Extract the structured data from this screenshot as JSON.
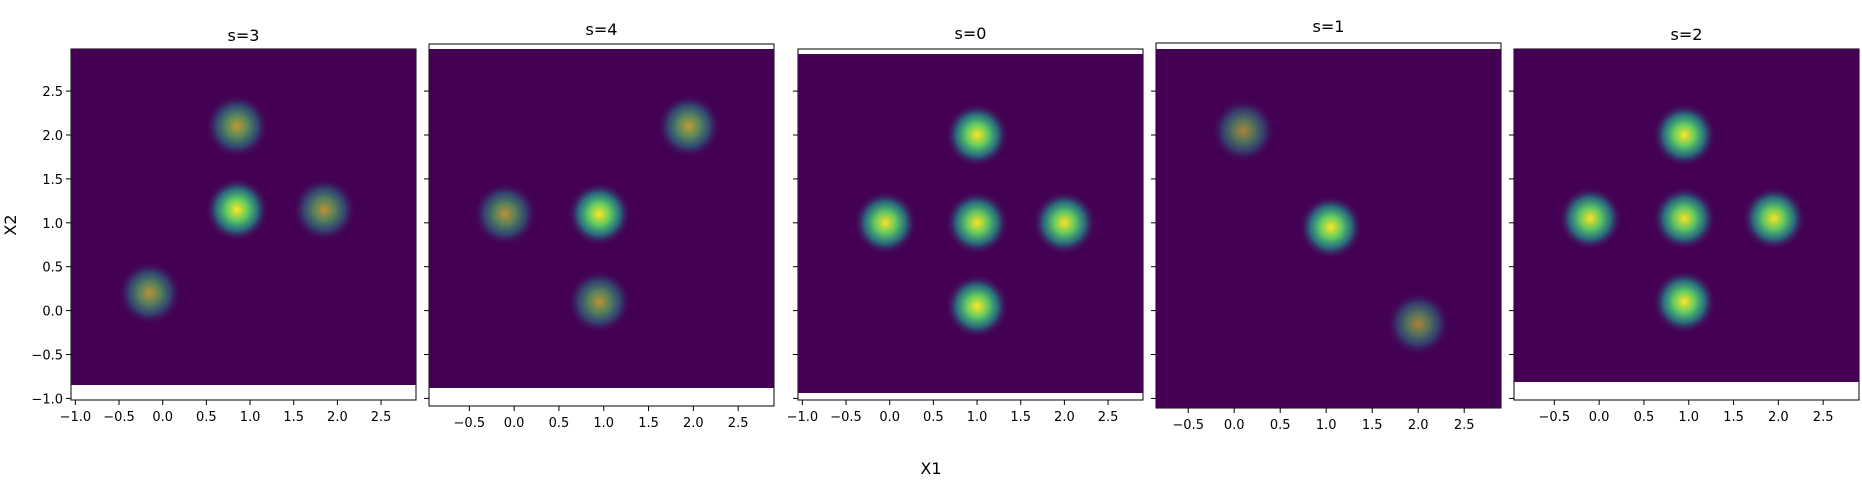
{
  "figure": {
    "xlabel": "X1",
    "ylabel": "X2",
    "yticks": [
      -1.0,
      -0.5,
      0.0,
      0.5,
      1.0,
      1.5,
      2.0,
      2.5
    ],
    "ytick_labels": [
      "−1.0",
      "−0.5",
      "0.0",
      "0.5",
      "1.0",
      "1.5",
      "2.0",
      "2.5"
    ],
    "colormap": "viridis",
    "colors": {
      "low": "#440154",
      "mid": "#21918c",
      "high": "#fde725"
    }
  },
  "chart_data": [
    {
      "type": "heatmap",
      "title": "s=3",
      "xlim": [
        -1.05,
        2.9
      ],
      "ylim": [
        -0.85,
        2.95
      ],
      "xticks": [
        -1.0,
        -0.5,
        0.0,
        0.5,
        1.0,
        1.5,
        2.0,
        2.5
      ],
      "xtick_labels": [
        "−1.0",
        "−0.5",
        "0.0",
        "0.5",
        "1.0",
        "1.5",
        "2.0",
        "2.5"
      ],
      "show_y_labels": true,
      "blobs": [
        {
          "x": 0.85,
          "y": 2.1,
          "intensity": 0.45
        },
        {
          "x": 0.85,
          "y": 1.15,
          "intensity": 1.0
        },
        {
          "x": 1.85,
          "y": 1.15,
          "intensity": 0.4
        },
        {
          "x": -0.15,
          "y": 0.2,
          "intensity": 0.4
        }
      ]
    },
    {
      "type": "heatmap",
      "title": "s=4",
      "xlim": [
        -0.95,
        2.9
      ],
      "ylim": [
        -0.88,
        2.95
      ],
      "xticks": [
        -0.5,
        0.0,
        0.5,
        1.0,
        1.5,
        2.0,
        2.5
      ],
      "xtick_labels": [
        "−0.5",
        "0.0",
        "0.5",
        "1.0",
        "1.5",
        "2.0",
        "2.5"
      ],
      "show_y_labels": false,
      "blobs": [
        {
          "x": 1.95,
          "y": 2.1,
          "intensity": 0.45
        },
        {
          "x": -0.1,
          "y": 1.1,
          "intensity": 0.4
        },
        {
          "x": 0.95,
          "y": 1.1,
          "intensity": 0.95
        },
        {
          "x": 0.95,
          "y": 0.1,
          "intensity": 0.4
        }
      ]
    },
    {
      "type": "heatmap",
      "title": "s=0",
      "xlim": [
        -1.05,
        2.9
      ],
      "ylim": [
        -0.95,
        2.9
      ],
      "xticks": [
        -1.0,
        -0.5,
        0.0,
        0.5,
        1.0,
        1.5,
        2.0,
        2.5
      ],
      "xtick_labels": [
        "−1.0",
        "−0.5",
        "0.0",
        "0.5",
        "1.0",
        "1.5",
        "2.0",
        "2.5"
      ],
      "show_y_labels": false,
      "blobs": [
        {
          "x": 1.0,
          "y": 2.0,
          "intensity": 0.95
        },
        {
          "x": -0.05,
          "y": 1.0,
          "intensity": 0.9
        },
        {
          "x": 1.0,
          "y": 1.0,
          "intensity": 0.9
        },
        {
          "x": 2.0,
          "y": 1.0,
          "intensity": 0.9
        },
        {
          "x": 1.0,
          "y": 0.05,
          "intensity": 0.95
        }
      ]
    },
    {
      "type": "heatmap",
      "title": "s=1",
      "xlim": [
        -0.85,
        2.9
      ],
      "ylim": [
        -1.05,
        2.95
      ],
      "xticks": [
        -0.5,
        0.0,
        0.5,
        1.0,
        1.5,
        2.0,
        2.5
      ],
      "xtick_labels": [
        "−0.5",
        "0.0",
        "0.5",
        "1.0",
        "1.5",
        "2.0",
        "2.5"
      ],
      "show_y_labels": false,
      "blobs": [
        {
          "x": 0.1,
          "y": 2.05,
          "intensity": 0.3
        },
        {
          "x": 1.05,
          "y": 0.95,
          "intensity": 0.95
        },
        {
          "x": 2.0,
          "y": -0.15,
          "intensity": 0.3
        }
      ]
    },
    {
      "type": "heatmap",
      "title": "s=2",
      "xlim": [
        -0.95,
        2.9
      ],
      "ylim": [
        -0.82,
        2.9
      ],
      "xticks": [
        -0.5,
        0.0,
        0.5,
        1.0,
        1.5,
        2.0,
        2.5
      ],
      "xtick_labels": [
        "−0.5",
        "0.0",
        "0.5",
        "1.0",
        "1.5",
        "2.0",
        "2.5"
      ],
      "show_y_labels": false,
      "blobs": [
        {
          "x": 0.95,
          "y": 2.0,
          "intensity": 0.95
        },
        {
          "x": -0.1,
          "y": 1.05,
          "intensity": 0.9
        },
        {
          "x": 0.95,
          "y": 1.05,
          "intensity": 0.9
        },
        {
          "x": 1.95,
          "y": 1.05,
          "intensity": 0.9
        },
        {
          "x": 0.95,
          "y": 0.1,
          "intensity": 0.95
        }
      ]
    }
  ]
}
